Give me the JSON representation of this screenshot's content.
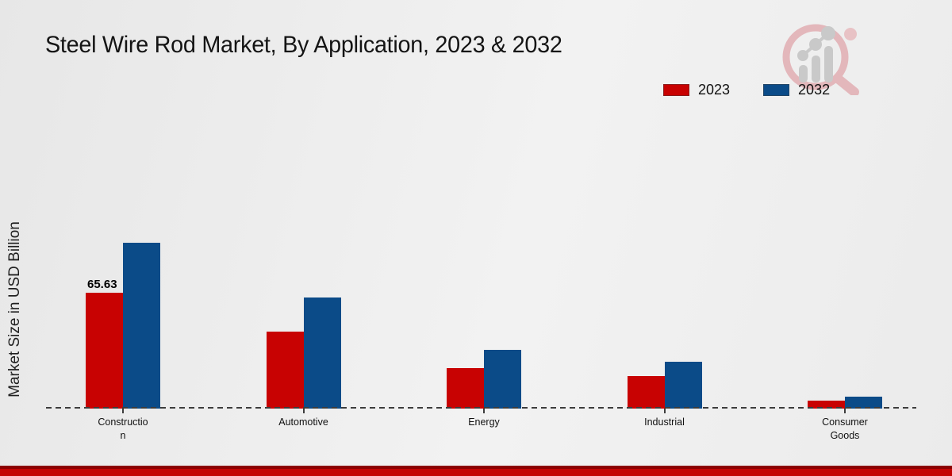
{
  "title": "Steel Wire Rod Market, By Application, 2023 & 2032",
  "ylabel": "Market Size in USD Billion",
  "legend": [
    {
      "label": "2023",
      "color": "#c80202"
    },
    {
      "label": "2032",
      "color": "#0b4b88"
    }
  ],
  "watermark_icon": "magnifier-bar-chart-logo",
  "chart_data": {
    "type": "bar",
    "categories": [
      "Construction",
      "Automotive",
      "Energy",
      "Industrial",
      "Consumer Goods"
    ],
    "series": [
      {
        "name": "2023",
        "color": "#c80202",
        "values": [
          65.63,
          43.6,
          22.9,
          18.3,
          4.4
        ]
      },
      {
        "name": "2032",
        "color": "#0b4b88",
        "values": [
          94.2,
          63.0,
          33.2,
          26.4,
          6.6
        ]
      }
    ],
    "data_labels": [
      {
        "series": "2023",
        "category": "Construction",
        "text": "65.63"
      }
    ],
    "title": "Steel Wire Rod Market, By Application, 2023 & 2032",
    "xlabel": "",
    "ylabel": "Market Size in USD Billion",
    "y_axis_ticks_visible": false,
    "grid": false,
    "baseline_style": "dashed",
    "legend_position": "top-right",
    "colors": {
      "footer_dark_red": "#8c0101",
      "footer_red": "#c40404",
      "dash_color": "#3d3d3d"
    }
  }
}
